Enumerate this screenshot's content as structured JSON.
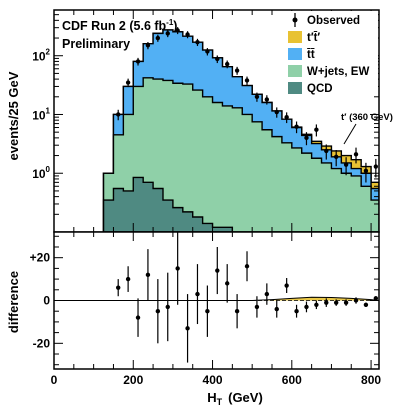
{
  "chart_data": [
    {
      "type": "area",
      "panel": "main",
      "experiment_label": "CDF Run 2 (5.6 fb",
      "experiment_label_sup": "-1",
      "experiment_label_end": ")",
      "status_label": "Preliminary",
      "ylabel": "events/25 GeV",
      "yscale": "log",
      "ylim": [
        0.1,
        600
      ],
      "xlim": [
        0,
        820
      ],
      "y_ticks": [
        {
          "base": "10",
          "exp": "2",
          "value": 100
        },
        {
          "base": "10",
          "exp": "1",
          "value": 10
        },
        {
          "base": "10",
          "exp": "0",
          "value": 1
        }
      ],
      "bin_edges": [
        125,
        150,
        175,
        200,
        225,
        250,
        275,
        300,
        325,
        350,
        375,
        400,
        425,
        450,
        475,
        500,
        525,
        550,
        575,
        600,
        625,
        650,
        675,
        700,
        725,
        750,
        775,
        800,
        820
      ],
      "series": [
        {
          "name": "QCD",
          "color": "#4f8a82",
          "values": [
            0.35,
            0.55,
            0.5,
            0.85,
            0.7,
            0.55,
            0.35,
            0.26,
            0.22,
            0.18,
            0.14,
            0.12,
            0.12
          ]
        },
        {
          "name": "W+jets, EW",
          "color": "#8fd0a8",
          "values": [
            1.0,
            4.5,
            10,
            30,
            42,
            40,
            38,
            34,
            33,
            26,
            20,
            16,
            14,
            13,
            10,
            7.5,
            5.5,
            4.2,
            3.3,
            2.7,
            2.2,
            1.8,
            1.5,
            1.2,
            1.0,
            0.9,
            0.6,
            0.35
          ]
        },
        {
          "name": "t̄t̄",
          "color": "#52b0f4",
          "values": [
            1.0,
            10,
            30,
            80,
            160,
            240,
            275,
            255,
            215,
            170,
            125,
            92,
            65,
            44,
            31,
            22,
            16,
            11.5,
            8.3,
            6.0,
            4.4,
            3.2,
            2.5,
            1.9,
            1.5,
            1.2,
            1.0,
            0.55
          ]
        },
        {
          "name": "t′t̄′",
          "color": "#e8c233",
          "values": [
            1.0,
            10,
            30,
            80,
            160,
            240,
            275,
            255,
            215,
            170,
            125,
            92,
            65,
            44,
            31,
            22,
            16,
            11.5,
            8.3,
            6.1,
            4.6,
            3.5,
            2.9,
            2.4,
            2.0,
            1.7,
            1.3,
            0.7
          ]
        }
      ],
      "observed": {
        "name": "Observed",
        "x": [
          162,
          187,
          212,
          237,
          262,
          287,
          312,
          337,
          362,
          387,
          412,
          437,
          462,
          487,
          512,
          537,
          562,
          587,
          612,
          637,
          662,
          687,
          712,
          737,
          762,
          787,
          812
        ],
        "y": [
          10,
          35,
          80,
          150,
          200,
          240,
          270,
          230,
          170,
          118,
          88,
          72,
          56,
          38,
          20,
          18,
          11,
          9,
          6.2,
          4,
          5.5,
          2.4,
          1.9,
          1.4,
          2.1,
          1.1,
          1.3
        ]
      },
      "legend_position": "top-right",
      "annotation": "t′ (360 GeV)"
    },
    {
      "type": "scatter",
      "panel": "ratio",
      "ylabel": "difference",
      "xlabel": "H",
      "xlabel_sub": "T",
      "xlabel_unit": "(GeV)",
      "xlim": [
        0,
        820
      ],
      "ylim": [
        -32,
        32
      ],
      "y_ticks": [
        {
          "label": "+20",
          "value": 20
        },
        {
          "label": "0",
          "value": 0
        },
        {
          "label": "-20",
          "value": -20
        }
      ],
      "x_ticks": [
        {
          "label": "0",
          "value": 0
        },
        {
          "label": "200",
          "value": 200
        },
        {
          "label": "400",
          "value": 400
        },
        {
          "label": "600",
          "value": 600
        },
        {
          "label": "800",
          "value": 800
        }
      ],
      "points": {
        "x": [
          162,
          187,
          212,
          237,
          262,
          287,
          312,
          337,
          362,
          387,
          412,
          437,
          462,
          487,
          512,
          537,
          562,
          587,
          612,
          637,
          662,
          687,
          712,
          737,
          762,
          787,
          812
        ],
        "y": [
          6,
          10,
          -8,
          12,
          -5,
          -3,
          15,
          -13,
          3,
          -5,
          14,
          8,
          -5,
          16,
          -3,
          3,
          -4,
          7,
          -5,
          -3,
          -2,
          -1,
          -1,
          -1,
          0,
          -2,
          1
        ],
        "err": [
          4,
          6,
          9,
          12,
          15,
          16,
          17,
          16,
          14,
          12,
          11,
          9,
          8,
          7,
          5,
          5,
          4,
          3.5,
          3,
          2.5,
          2,
          2,
          1.5,
          1.5,
          1.5,
          1,
          1
        ]
      },
      "fit_curve": {
        "color": "#e8c233",
        "x": [
          0,
          500,
          550,
          600,
          650,
          700,
          750,
          800,
          820
        ],
        "y": [
          0,
          0,
          0.4,
          1,
          1.5,
          1.4,
          1,
          0.4,
          0
        ]
      }
    }
  ]
}
